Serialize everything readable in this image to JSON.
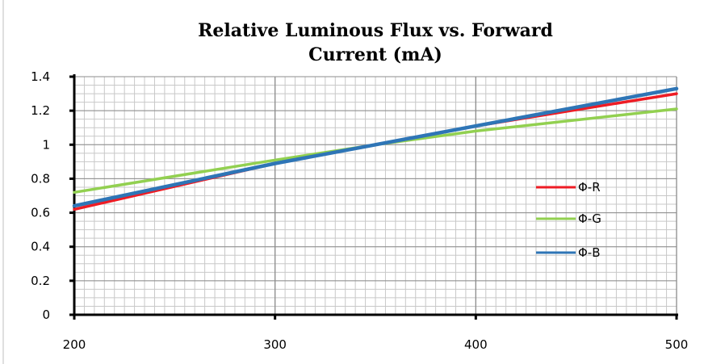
{
  "chart_data": {
    "type": "line",
    "title_lines": [
      "Relative Luminous Flux vs. Forward",
      "Current (mA)"
    ],
    "xlabel": "",
    "ylabel": "",
    "xlim": [
      200,
      500
    ],
    "ylim": [
      0,
      1.4
    ],
    "x_ticks": [
      "200",
      "300",
      "400",
      "500"
    ],
    "x_tick_values": [
      200,
      300,
      400,
      500
    ],
    "y_ticks": [
      "0",
      "0.2",
      "0.4",
      "0.6",
      "0.8",
      "1",
      "1.2",
      "1.4"
    ],
    "y_tick_values": [
      0,
      0.2,
      0.4,
      0.6,
      0.8,
      1.0,
      1.2,
      1.4
    ],
    "grid": true,
    "legend_position": "right",
    "series": [
      {
        "name": "Φ-R",
        "color": "#ee1c24",
        "x": [
          200,
          300,
          350,
          400,
          500
        ],
        "y": [
          0.62,
          0.89,
          1.0,
          1.11,
          1.3
        ]
      },
      {
        "name": "Φ-G",
        "color": "#92d050",
        "x": [
          200,
          300,
          350,
          400,
          500
        ],
        "y": [
          0.72,
          0.91,
          1.0,
          1.08,
          1.21
        ]
      },
      {
        "name": "Φ-B",
        "color": "#2e75b6",
        "x": [
          200,
          300,
          350,
          400,
          500
        ],
        "y": [
          0.64,
          0.89,
          1.0,
          1.11,
          1.33
        ]
      }
    ]
  }
}
